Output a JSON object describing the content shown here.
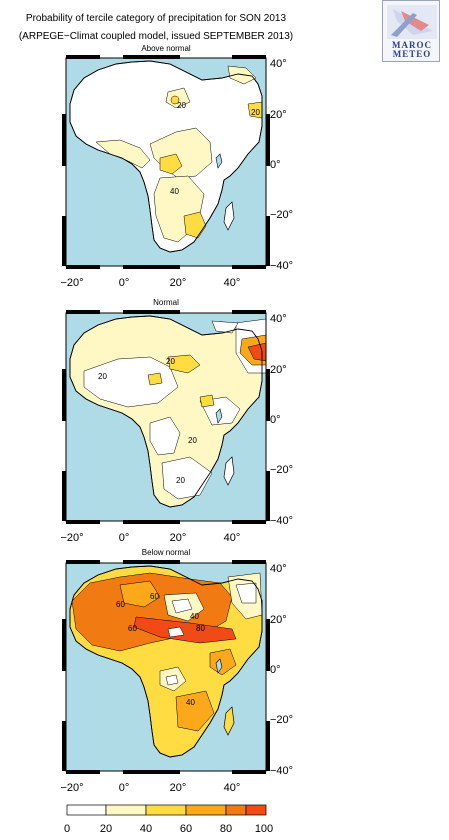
{
  "title_line1": "Probability of tercile category of precipitation for SON 2013",
  "title_line2": "(ARPEGE−Climat coupled model, issued SEPTEMBER 2013)",
  "logo": {
    "text": "MAROC METEO",
    "icon": "maroc-meteo-logo"
  },
  "panels": [
    {
      "title": "Above normal",
      "contour_labels": [
        "20",
        "20",
        "40"
      ]
    },
    {
      "title": "Normal",
      "contour_labels": [
        "20",
        "20",
        "20",
        "20"
      ]
    },
    {
      "title": "Below normal",
      "contour_labels": [
        "60",
        "60",
        "40",
        "60",
        "80",
        "40"
      ]
    }
  ],
  "axes": {
    "lon_ticks": [
      "−20°",
      "0°",
      "20°",
      "40°"
    ],
    "lat_ticks": [
      "40°",
      "20°",
      "0°",
      "−20°",
      "−40°"
    ]
  },
  "colorbar": {
    "ticks": [
      "0",
      "20",
      "40",
      "60",
      "80",
      "100"
    ],
    "colors": [
      "#ffffff",
      "#fff8c4",
      "#ffdd42",
      "#fba91b",
      "#f27a12",
      "#f04a16"
    ]
  },
  "colors": {
    "ocean": "#aedbe6",
    "land_low": "#ffffff",
    "contour": "#000000"
  }
}
